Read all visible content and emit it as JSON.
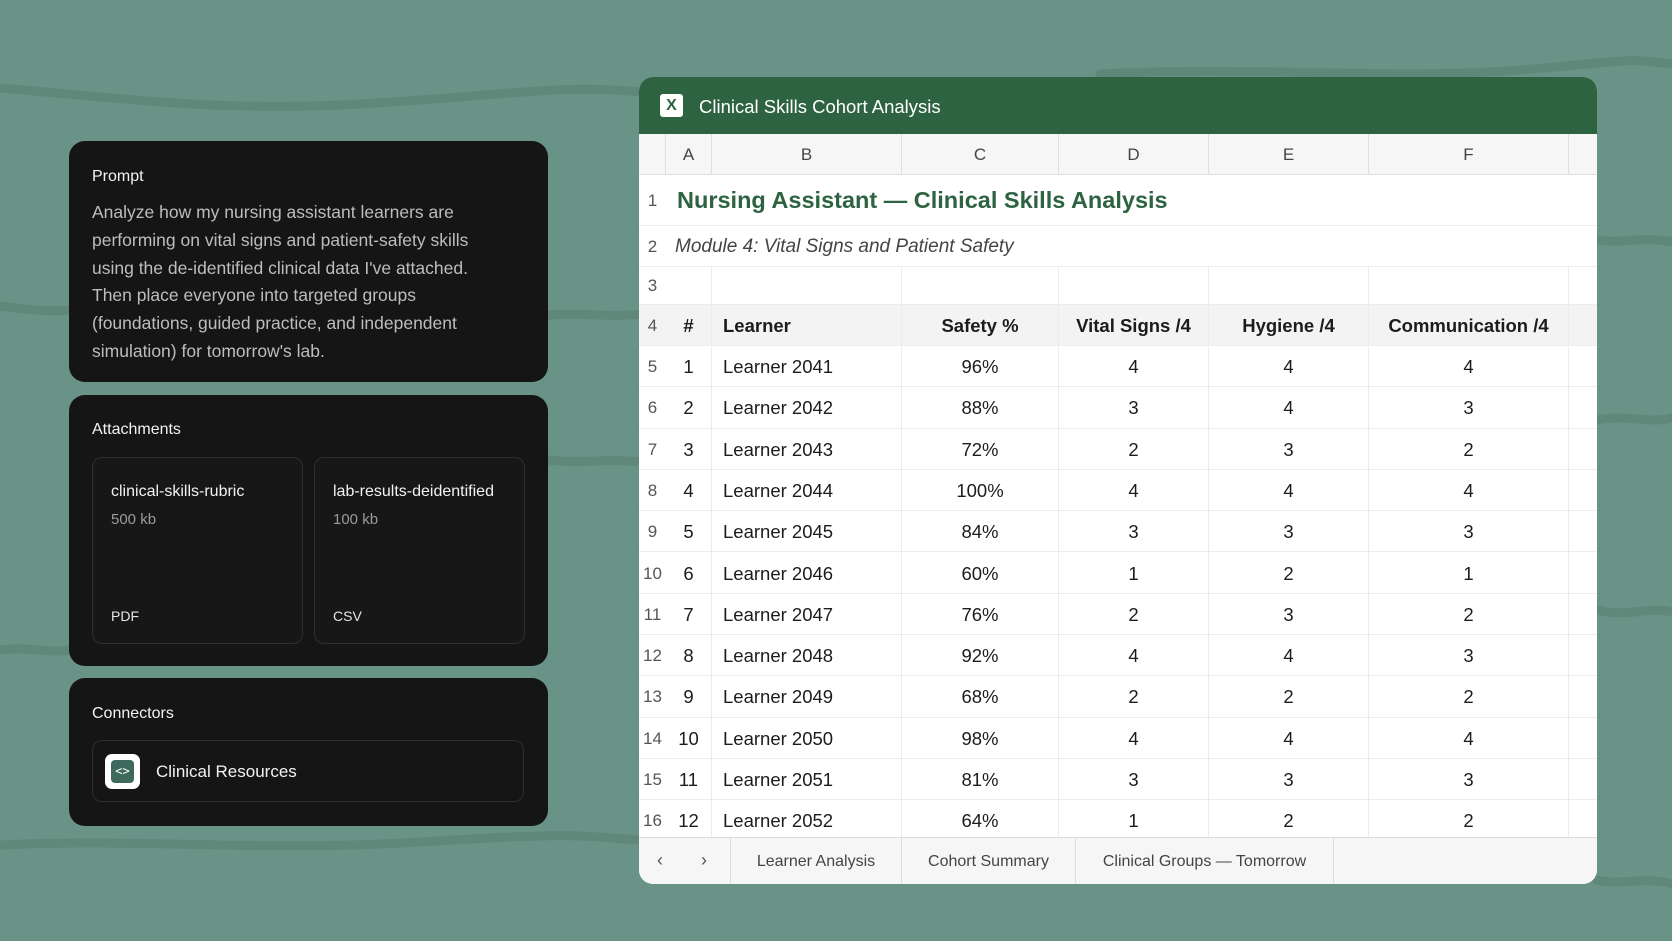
{
  "prompt": {
    "title": "Prompt",
    "text": "Analyze how my nursing assistant learners are performing on vital signs and patient-safety skills using the de-identified clinical data I've attached. Then place everyone into targeted groups (foundations, guided practice, and independent simulation) for tomorrow's lab."
  },
  "attachments": {
    "title": "Attachments",
    "files": [
      {
        "name": "clinical-skills-rubric",
        "size": "500 kb",
        "type": "PDF"
      },
      {
        "name": "lab-results-deidentified",
        "size": "100 kb",
        "type": "CSV"
      }
    ]
  },
  "connectors": {
    "title": "Connectors",
    "items": [
      {
        "label": "Clinical Resources",
        "icon": "code-icon"
      }
    ]
  },
  "spreadsheet": {
    "app_icon": "excel-icon",
    "title": "Clinical Skills Cohort Analysis",
    "columns": [
      "A",
      "B",
      "C",
      "D",
      "E",
      "F"
    ],
    "sheet_title": "Nursing Assistant — Clinical Skills Analysis",
    "sheet_subtitle": "Module 4: Vital Signs and Patient Safety",
    "headers": [
      "#",
      "Learner",
      "Safety %",
      "Vital Signs /4",
      "Hygiene /4",
      "Communication /4"
    ],
    "rows": [
      [
        "1",
        "Learner 2041",
        "96%",
        "4",
        "4",
        "4"
      ],
      [
        "2",
        "Learner 2042",
        "88%",
        "3",
        "4",
        "3"
      ],
      [
        "3",
        "Learner 2043",
        "72%",
        "2",
        "3",
        "2"
      ],
      [
        "4",
        "Learner 2044",
        "100%",
        "4",
        "4",
        "4"
      ],
      [
        "5",
        "Learner 2045",
        "84%",
        "3",
        "3",
        "3"
      ],
      [
        "6",
        "Learner 2046",
        "60%",
        "1",
        "2",
        "1"
      ],
      [
        "7",
        "Learner 2047",
        "76%",
        "2",
        "3",
        "2"
      ],
      [
        "8",
        "Learner 2048",
        "92%",
        "4",
        "4",
        "3"
      ],
      [
        "9",
        "Learner 2049",
        "68%",
        "2",
        "2",
        "2"
      ],
      [
        "10",
        "Learner 2050",
        "98%",
        "4",
        "4",
        "4"
      ],
      [
        "11",
        "Learner 2051",
        "81%",
        "3",
        "3",
        "3"
      ],
      [
        "12",
        "Learner 2052",
        "64%",
        "1",
        "2",
        "2"
      ]
    ],
    "tabs": [
      "Learner Analysis",
      "Cohort Summary",
      "Clinical Groups — Tomorrow"
    ],
    "prev_arrow": "‹",
    "next_arrow": "›"
  },
  "colors": {
    "background": "#6a9387",
    "panel": "#151515",
    "title_bar": "#2d6340",
    "accent_text": "#2d6340"
  }
}
